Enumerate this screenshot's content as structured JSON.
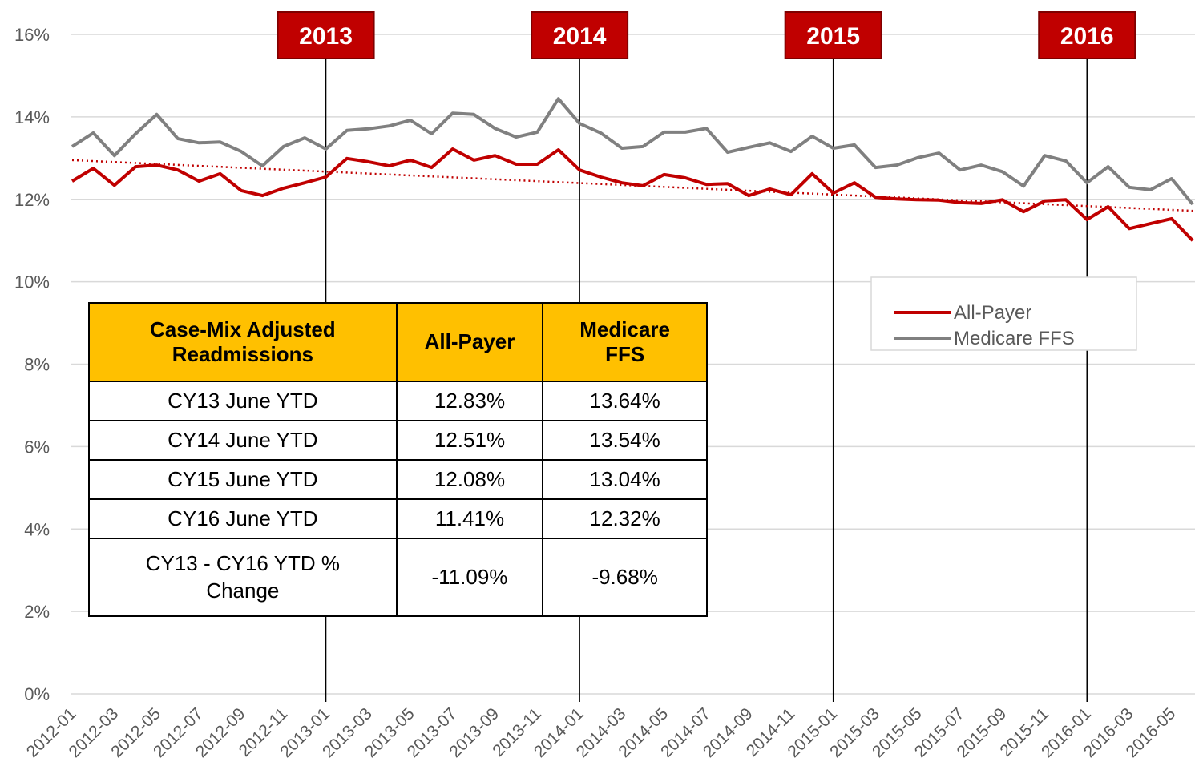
{
  "chart_data": {
    "type": "line",
    "categories": [
      "2012-01",
      null,
      "2012-03",
      null,
      "2012-05",
      null,
      "2012-07",
      null,
      "2012-09",
      null,
      "2012-11",
      null,
      "2013-01",
      null,
      "2013-03",
      null,
      "2013-05",
      null,
      "2013-07",
      null,
      "2013-09",
      null,
      "2013-11",
      null,
      "2014-01",
      null,
      "2014-03",
      null,
      "2014-05",
      null,
      "2014-07",
      null,
      "2014-09",
      null,
      "2014-11",
      null,
      "2015-01",
      null,
      "2015-03",
      null,
      "2015-05",
      null,
      "2015-07",
      null,
      "2015-09",
      null,
      "2015-11",
      null,
      "2016-01",
      null,
      "2016-03",
      null,
      "2016-05",
      null
    ],
    "series": [
      {
        "name": "All-Payer",
        "color": "#c00000",
        "values": [
          12.44,
          12.75,
          12.34,
          12.79,
          12.83,
          12.71,
          12.44,
          12.62,
          12.21,
          12.09,
          12.27,
          12.4,
          12.54,
          12.99,
          12.91,
          12.81,
          12.95,
          12.77,
          13.22,
          12.95,
          13.06,
          12.85,
          12.85,
          13.2,
          12.71,
          12.54,
          12.4,
          12.33,
          12.6,
          12.52,
          12.36,
          12.38,
          12.09,
          12.25,
          12.11,
          12.62,
          12.15,
          12.4,
          12.05,
          12.01,
          11.99,
          11.98,
          11.92,
          11.9,
          11.99,
          11.7,
          11.96,
          11.99,
          11.51,
          11.82,
          11.29,
          11.41,
          11.53,
          11.0
        ]
      },
      {
        "name": "Medicare FFS",
        "color": "#808080",
        "values": [
          13.28,
          13.61,
          13.06,
          13.59,
          14.06,
          13.47,
          13.37,
          13.39,
          13.16,
          12.81,
          13.28,
          13.49,
          13.22,
          13.67,
          13.71,
          13.78,
          13.92,
          13.59,
          14.09,
          14.06,
          13.72,
          13.51,
          13.63,
          14.44,
          13.84,
          13.61,
          13.24,
          13.28,
          13.63,
          13.63,
          13.72,
          13.14,
          13.26,
          13.37,
          13.16,
          13.53,
          13.24,
          13.32,
          12.77,
          12.83,
          13.01,
          13.12,
          12.71,
          12.83,
          12.67,
          12.32,
          13.06,
          12.93,
          12.4,
          12.79,
          12.29,
          12.23,
          12.5,
          11.88
        ]
      }
    ],
    "trendline": {
      "color": "#c00000",
      "values": [
        12.95,
        11.72
      ]
    },
    "ylim": [
      0,
      16
    ],
    "yticks": [
      {
        "value": 0,
        "label": "0%"
      },
      {
        "value": 2,
        "label": "2%"
      },
      {
        "value": 4,
        "label": "4%"
      },
      {
        "value": 6,
        "label": "6%"
      },
      {
        "value": 8,
        "label": "8%"
      },
      {
        "value": 10,
        "label": "10%"
      },
      {
        "value": 12,
        "label": "12%"
      },
      {
        "value": 14,
        "label": "14%"
      },
      {
        "value": 16,
        "label": "16%"
      }
    ],
    "grid": true,
    "annotations": [
      {
        "label": "2013",
        "x": "2013-01"
      },
      {
        "label": "2014",
        "x": "2014-01"
      },
      {
        "label": "2015",
        "x": "2015-01"
      },
      {
        "label": "2016",
        "x": "2016-01"
      }
    ]
  },
  "table": {
    "header": [
      "Case-Mix Adjusted Readmissions",
      "All-Payer",
      "Medicare FFS"
    ],
    "rows": [
      [
        "CY13 June YTD",
        "12.83%",
        "13.64%"
      ],
      [
        "CY14 June YTD",
        "12.51%",
        "13.54%"
      ],
      [
        "CY15 June YTD",
        "12.08%",
        "13.04%"
      ],
      [
        "CY16 June YTD",
        "11.41%",
        "12.32%"
      ],
      [
        "CY13 - CY16 YTD % Change",
        "-11.09%",
        "-9.68%"
      ]
    ]
  }
}
